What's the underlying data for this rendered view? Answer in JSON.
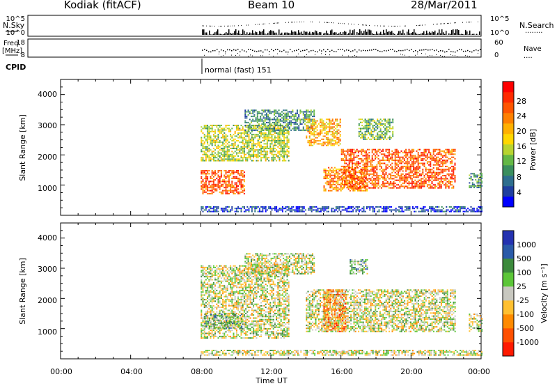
{
  "header": {
    "station": "Kodiak (fitACF)",
    "beam": "Beam 10",
    "date": "28/Mar/2011"
  },
  "mini_panels": {
    "nsky": {
      "left_label": "N.Sky",
      "right_label": "N.Search",
      "right_dots": "........",
      "left_ticks": [
        "10^5",
        "10^0"
      ],
      "right_ticks": [
        "10^5",
        "10^0"
      ]
    },
    "freq": {
      "left_label_1": "Freq.",
      "left_label_2": "[MHz]",
      "right_label": "Nave",
      "right_dots": "....",
      "left_ticks": [
        "18",
        "8"
      ],
      "right_ticks": [
        "60",
        "0"
      ]
    },
    "cpid": {
      "label": "CPID",
      "mode_text": "normal (fast) 151"
    }
  },
  "colorbars": {
    "power": {
      "label": "Power [dB]",
      "ticks": [
        "28",
        "24",
        "20",
        "16",
        "12",
        "8",
        "4"
      ],
      "colors": [
        "#0000ff",
        "#1f3fa0",
        "#2e6e8e",
        "#3b8f5e",
        "#64b846",
        "#b8d430",
        "#ffd700",
        "#ffb000",
        "#ff8000",
        "#ff5500",
        "#ff2a00",
        "#ff0000"
      ]
    },
    "velocity": {
      "label": "Velocity [m s⁻¹]",
      "ticks": [
        "1000",
        "500",
        "100",
        "25",
        "-25",
        "-100",
        "-500",
        "-1000"
      ],
      "colors": [
        "#2432b0",
        "#2a5aa8",
        "#3c8a3c",
        "#5cc638",
        "#c8c8c0",
        "#ffc030",
        "#ff8a00",
        "#ff5000",
        "#ff1a00"
      ]
    }
  },
  "axes": {
    "ylabel": "Slant Range [km]",
    "yticks": [
      "4000",
      "3000",
      "2000",
      "1000"
    ],
    "xlabel": "Time UT",
    "xticks": [
      "00:00",
      "04:00",
      "08:00",
      "12:00",
      "16:00",
      "20:00",
      "00:00"
    ]
  },
  "chart_data": [
    {
      "type": "heatmap",
      "name": "Power",
      "x_range_hours": [
        0,
        24
      ],
      "y_range_km": [
        0,
        4500
      ],
      "regions": [
        {
          "t0": 8.0,
          "t1": 10.5,
          "r0": 700,
          "r1": 1500,
          "level": 9
        },
        {
          "t0": 8.0,
          "t1": 13.0,
          "r0": 1800,
          "r1": 3000,
          "level": 5
        },
        {
          "t0": 10.5,
          "t1": 14.5,
          "r0": 2800,
          "r1": 3500,
          "level": 3
        },
        {
          "t0": 14.0,
          "t1": 16.0,
          "r0": 2300,
          "r1": 3200,
          "level": 7
        },
        {
          "t0": 15.0,
          "t1": 17.5,
          "r0": 800,
          "r1": 1600,
          "level": 8
        },
        {
          "t0": 16.0,
          "t1": 22.5,
          "r0": 900,
          "r1": 2200,
          "level": 9
        },
        {
          "t0": 17.0,
          "t1": 19.0,
          "r0": 2500,
          "r1": 3200,
          "level": 4
        },
        {
          "t0": 23.3,
          "t1": 24.0,
          "r0": 900,
          "r1": 1400,
          "level": 3
        },
        {
          "t0": 8.0,
          "t1": 24.0,
          "r0": 100,
          "r1": 300,
          "level": 1
        }
      ]
    },
    {
      "type": "heatmap",
      "name": "Velocity",
      "x_range_hours": [
        0,
        24
      ],
      "y_range_km": [
        0,
        4500
      ],
      "regions": [
        {
          "t0": 8.0,
          "t1": 13.0,
          "r0": 700,
          "r1": 3100,
          "level": 4
        },
        {
          "t0": 10.5,
          "t1": 14.5,
          "r0": 2800,
          "r1": 3500,
          "level": 4
        },
        {
          "t0": 14.0,
          "t1": 22.5,
          "r0": 900,
          "r1": 2300,
          "level": 4
        },
        {
          "t0": 8.2,
          "t1": 10.3,
          "r0": 1000,
          "r1": 1500,
          "level": 3
        },
        {
          "t0": 15.0,
          "t1": 16.3,
          "r0": 900,
          "r1": 2300,
          "level": 6
        },
        {
          "t0": 16.5,
          "t1": 17.5,
          "r0": 2800,
          "r1": 3300,
          "level": 3
        },
        {
          "t0": 23.3,
          "t1": 24.0,
          "r0": 900,
          "r1": 1500,
          "level": 4
        },
        {
          "t0": 8.0,
          "t1": 24.0,
          "r0": 100,
          "r1": 300,
          "level": 4
        }
      ]
    }
  ]
}
